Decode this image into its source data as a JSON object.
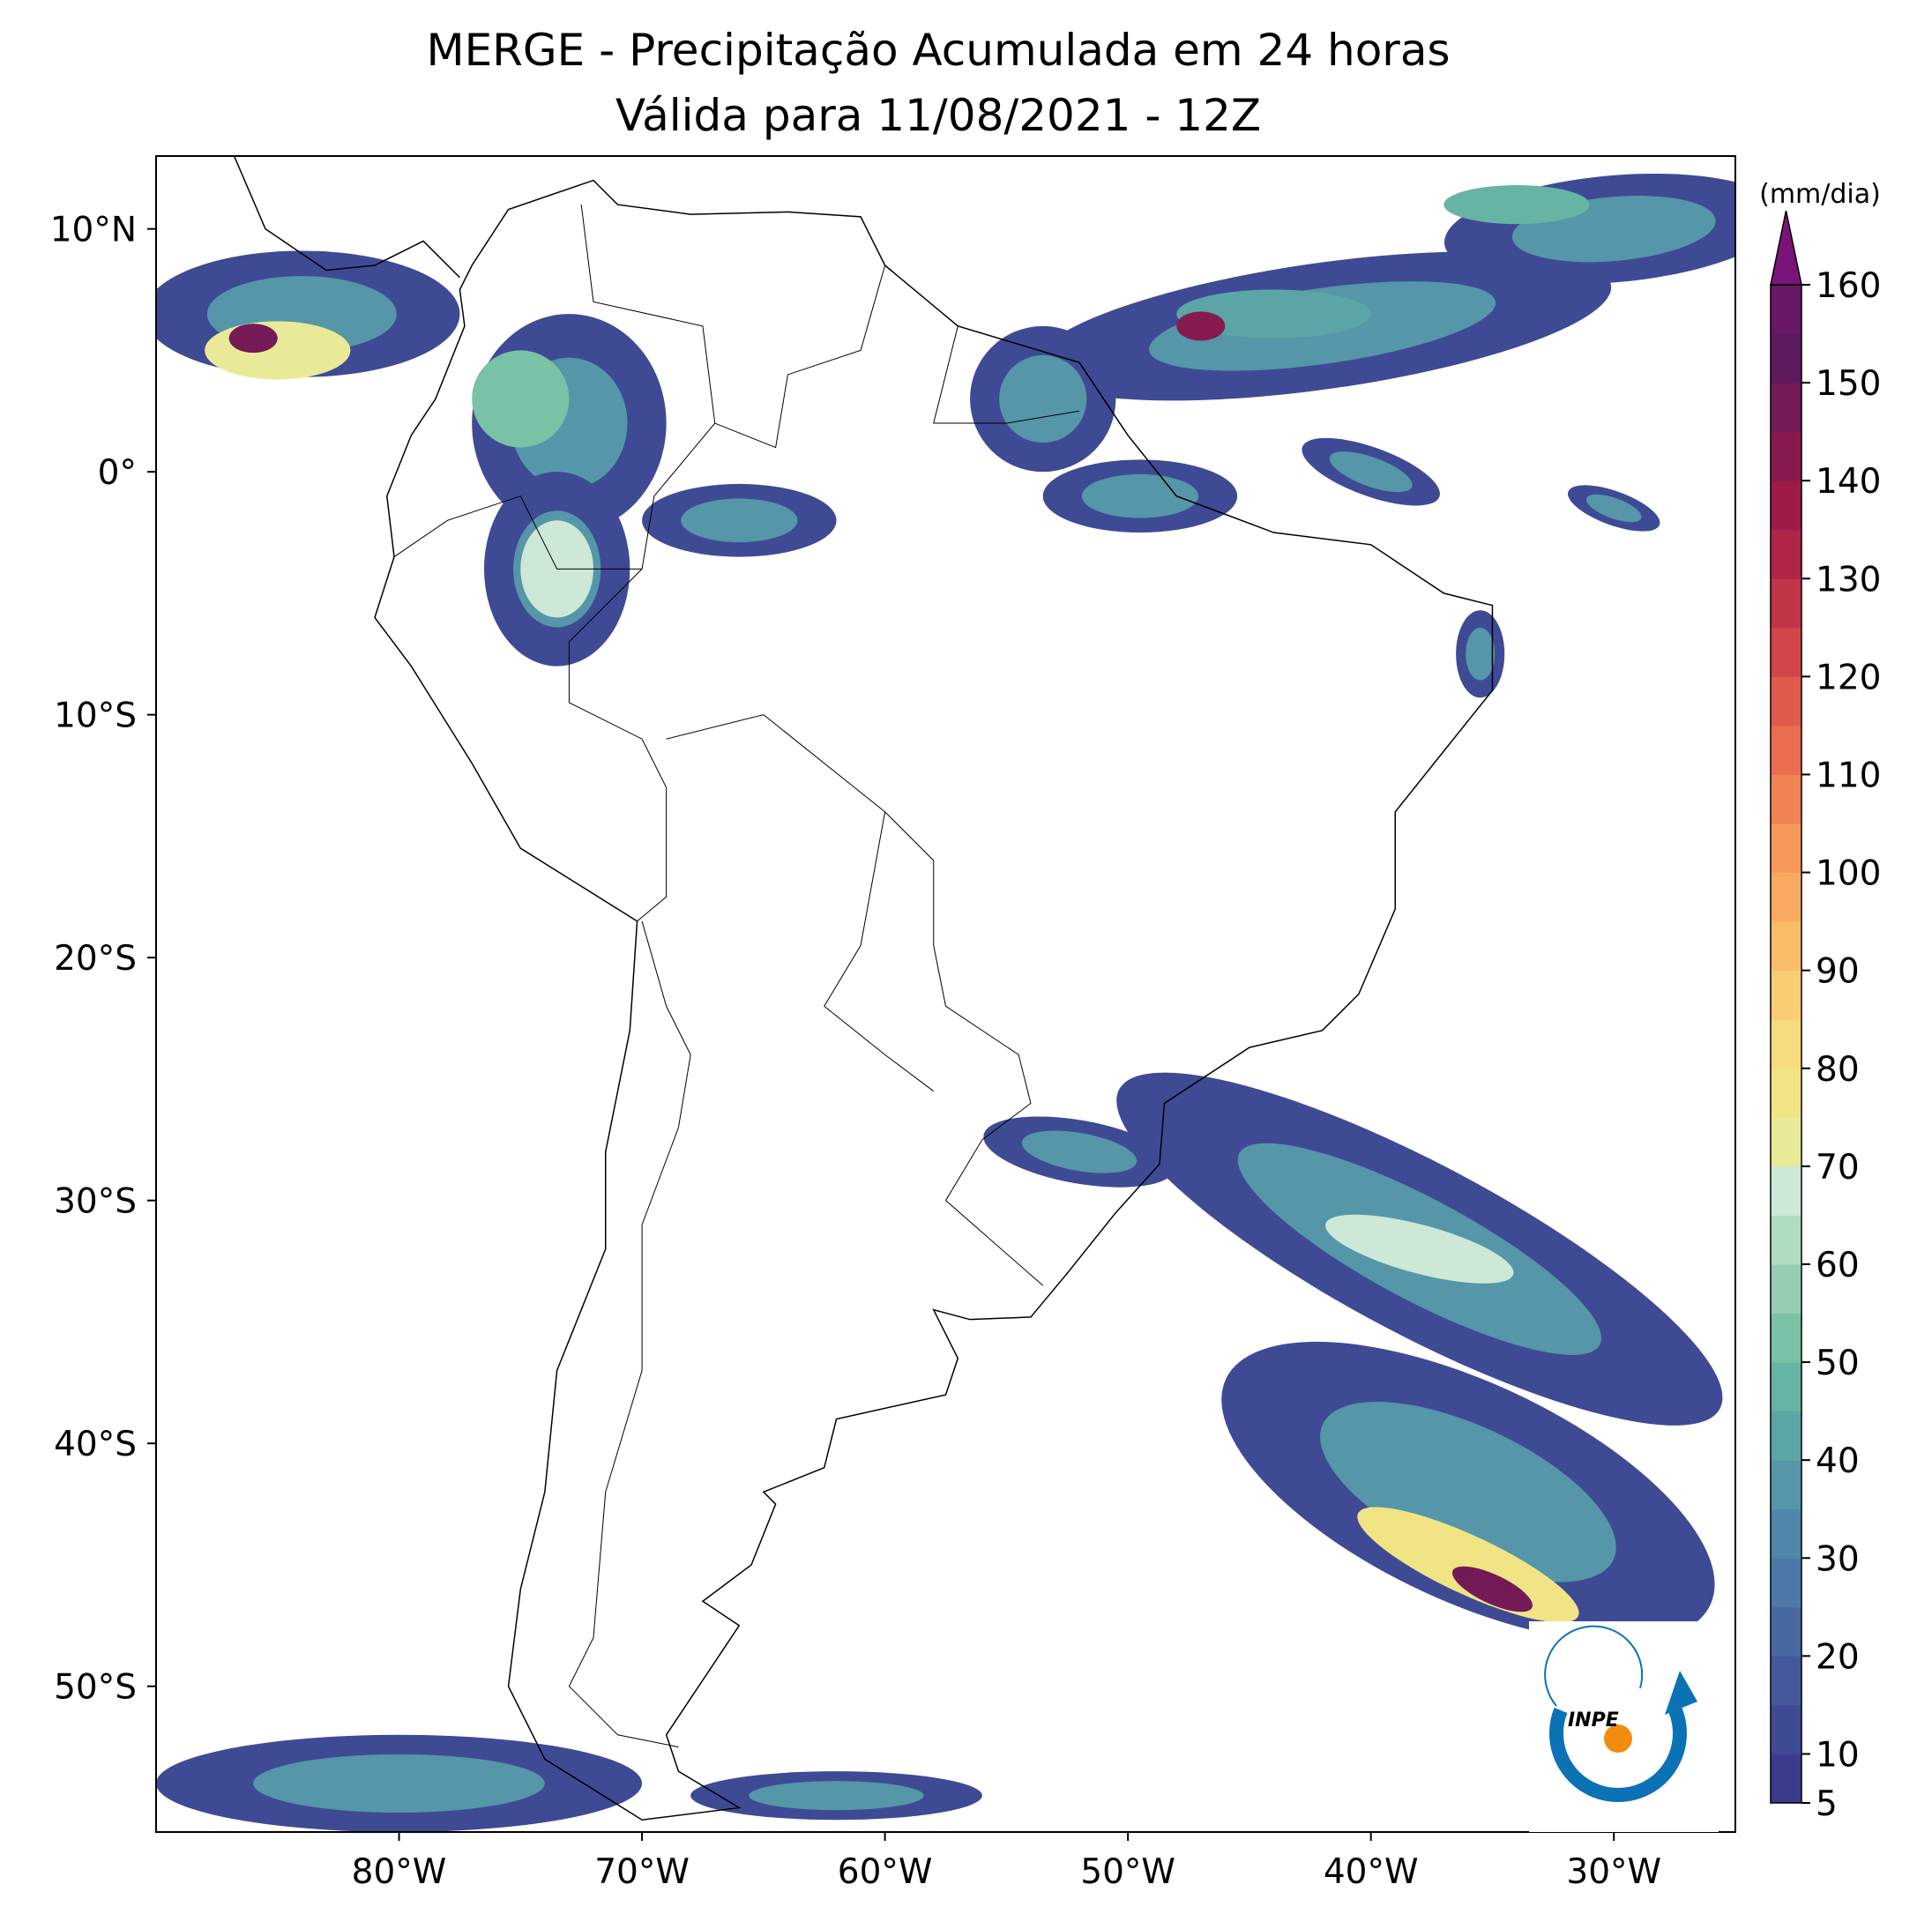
{
  "chart_data": {
    "type": "map",
    "title": "MERGE - Precipitação Acumulada em 24 horas",
    "subtitle": "Válida para 11/08/2021 - 12Z",
    "xlim": [
      -90,
      -25
    ],
    "ylim": [
      -56,
      13
    ],
    "xticks": [
      {
        "value": -80,
        "label": "80°W"
      },
      {
        "value": -70,
        "label": "70°W"
      },
      {
        "value": -60,
        "label": "60°W"
      },
      {
        "value": -50,
        "label": "50°W"
      },
      {
        "value": -40,
        "label": "40°W"
      },
      {
        "value": -30,
        "label": "30°W"
      }
    ],
    "yticks": [
      {
        "value": 10,
        "label": "10°N"
      },
      0,
      {
        "value": -10,
        "label": "10°S"
      },
      {
        "value": -20,
        "label": "20°S"
      },
      {
        "value": -30,
        "label": "30°S"
      },
      {
        "value": -40,
        "label": "40°S"
      },
      {
        "value": -50,
        "label": "50°S"
      }
    ],
    "yticks_zero_label": "0°",
    "colorbar": {
      "label": "(mm/dia)",
      "range": [
        5,
        160
      ],
      "ticks": [
        5,
        10,
        20,
        30,
        40,
        50,
        60,
        70,
        80,
        90,
        100,
        110,
        120,
        130,
        140,
        150,
        160
      ],
      "colors": [
        "#3b3b8e",
        "#3f4a95",
        "#43599c",
        "#4868a3",
        "#4d78aa",
        "#5087ab",
        "#5596a9",
        "#5ba5a6",
        "#66b4a4",
        "#79c2a5",
        "#95cfb0",
        "#b0dcc0",
        "#cde8d6",
        "#e8ea98",
        "#f1e485",
        "#f7dc7e",
        "#f9cd72",
        "#f9bd68",
        "#f8ab60",
        "#f6985a",
        "#f18254",
        "#ea6d4f",
        "#e05a4b",
        "#d24649",
        "#c23548",
        "#b02647",
        "#9c1b49",
        "#861a4f",
        "#731a57",
        "#5e1a5e",
        "#6a1766"
      ],
      "extend_color": "#7b1478"
    },
    "logo": "INPE"
  }
}
